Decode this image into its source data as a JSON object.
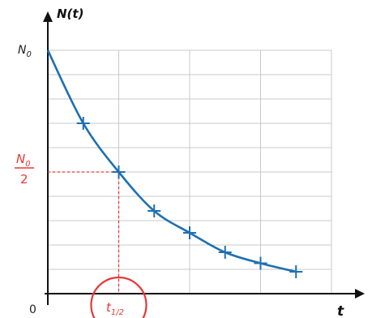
{
  "chart_data": {
    "type": "line",
    "ylabel": "N(t)",
    "xlabel": "t",
    "origin_label": "0",
    "y_tick_label": {
      "base": "N",
      "sub": "0"
    },
    "y_half_label": {
      "numerator": {
        "base": "N",
        "sub": "0"
      },
      "denominator": "2"
    },
    "x_half_label": {
      "base": "t",
      "sub": "1/2"
    },
    "x": [
      0,
      0.5,
      1,
      1.5,
      2,
      2.5,
      3,
      3.5
    ],
    "values": [
      1.0,
      0.7,
      0.5,
      0.34,
      0.25,
      0.17,
      0.125,
      0.09
    ],
    "markers_x": [
      0.5,
      1,
      1.5,
      2,
      2.5,
      3,
      3.5
    ],
    "xlim": [
      0,
      4
    ],
    "ylim": [
      0,
      1
    ],
    "half_life": 1,
    "grid": true,
    "colors": {
      "curve": "#1f6fb2",
      "grid": "#c8c8c8",
      "axis": "#111111",
      "highlight": "#e53935"
    }
  }
}
